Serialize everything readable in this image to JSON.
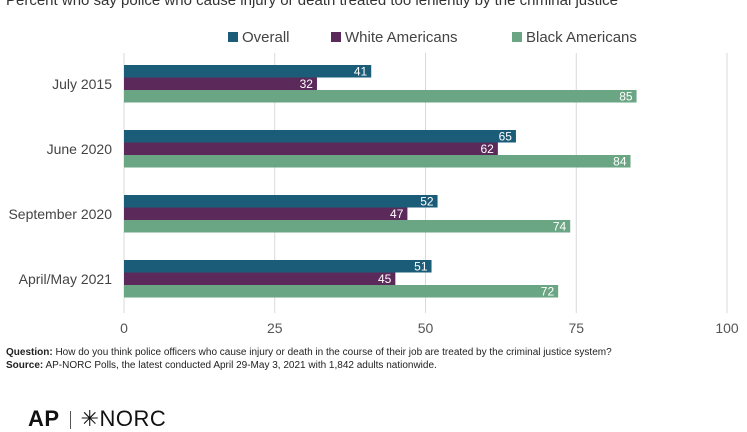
{
  "chart_data": {
    "type": "bar",
    "orientation": "horizontal",
    "title": "Percent who say police who cause injury or death treated too leniently by the criminal justice",
    "categories": [
      "July 2015",
      "June 2020",
      "September 2020",
      "April/May 2021"
    ],
    "series": [
      {
        "name": "Overall",
        "color": "#1b5d79",
        "values": [
          41,
          65,
          52,
          51
        ]
      },
      {
        "name": "White Americans",
        "color": "#5b2a5b",
        "values": [
          32,
          62,
          47,
          45
        ]
      },
      {
        "name": "Black Americans",
        "color": "#6aa684",
        "values": [
          85,
          84,
          74,
          72
        ]
      }
    ],
    "xlim": [
      0,
      100
    ],
    "xticks": [
      0,
      25,
      50,
      75,
      100
    ],
    "grid": true,
    "legend": "top"
  },
  "footnote": {
    "question_label": "Question:",
    "question_text": "How do you think police officers who cause injury or death in the course of their job are treated by the criminal justice system?",
    "source_label": "Source:",
    "source_text": "AP-NORC Polls, the latest conducted April 29-May 3, 2021 with 1,842 adults nationwide."
  },
  "logos": {
    "ap": "AP",
    "norc": "✳NORC"
  }
}
